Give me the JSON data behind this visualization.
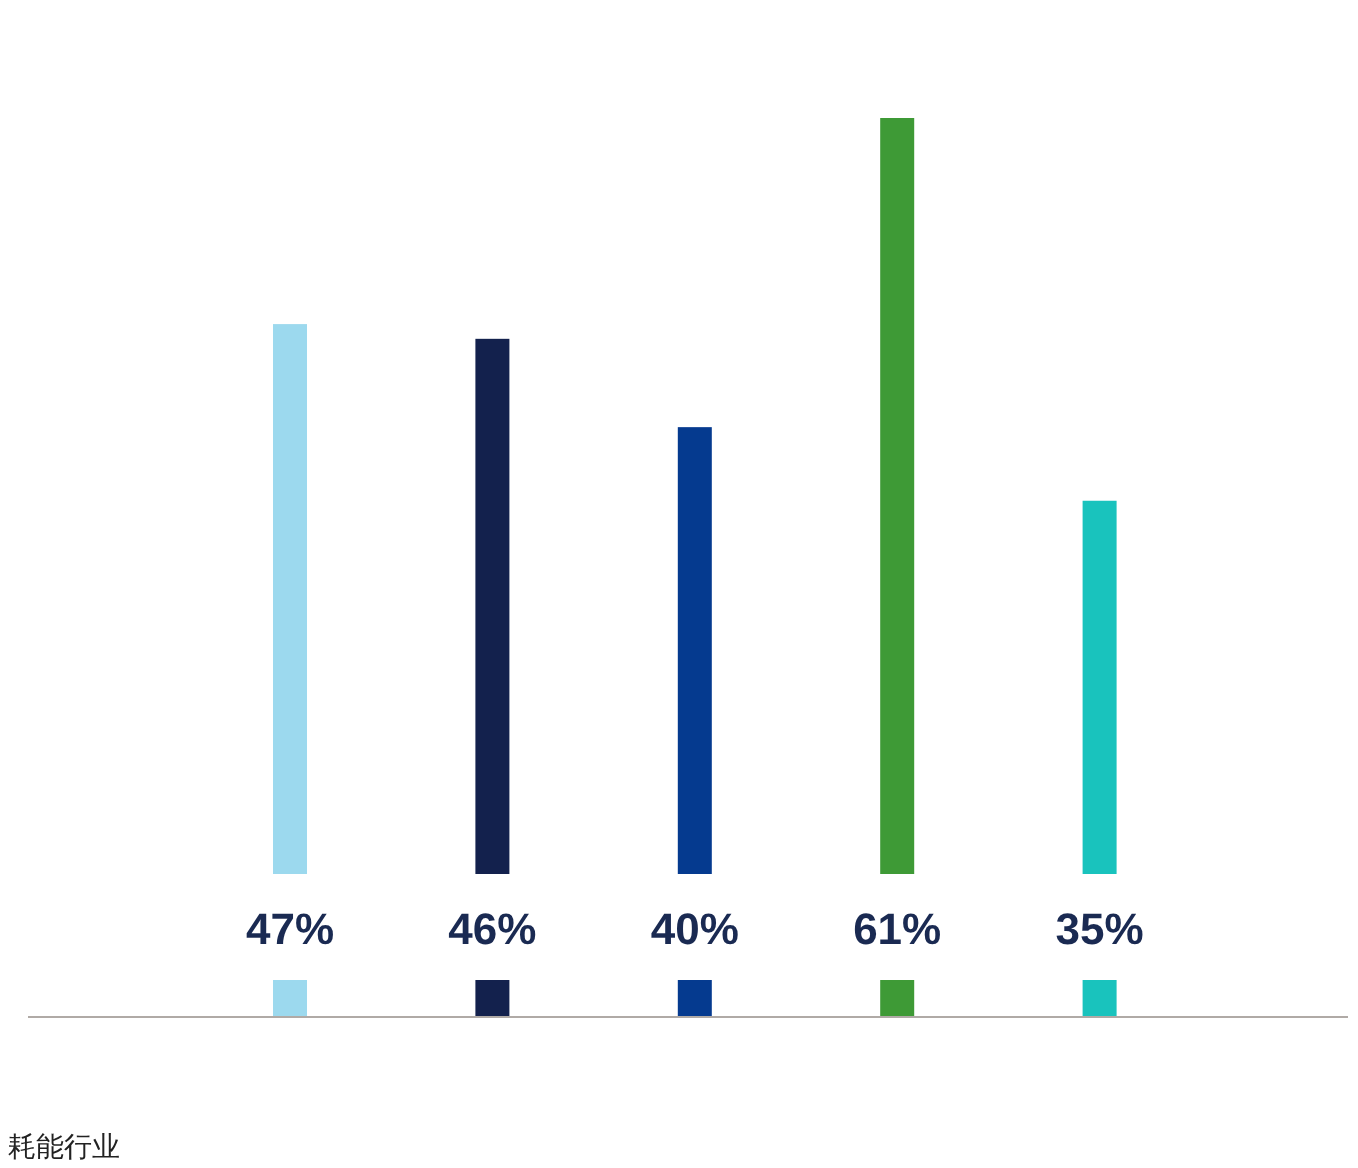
{
  "chart_data": {
    "type": "bar",
    "categories": [
      null,
      null,
      null,
      null,
      null
    ],
    "values": [
      47,
      46,
      40,
      61,
      35
    ],
    "colors": [
      "#9cd9ee",
      "#13214d",
      "#053a8f",
      "#3e9a36",
      "#19c3bd"
    ],
    "value_labels": [
      "47%",
      "46%",
      "40%",
      "61%",
      "35%"
    ],
    "annotations": [
      "耗能行业"
    ]
  }
}
